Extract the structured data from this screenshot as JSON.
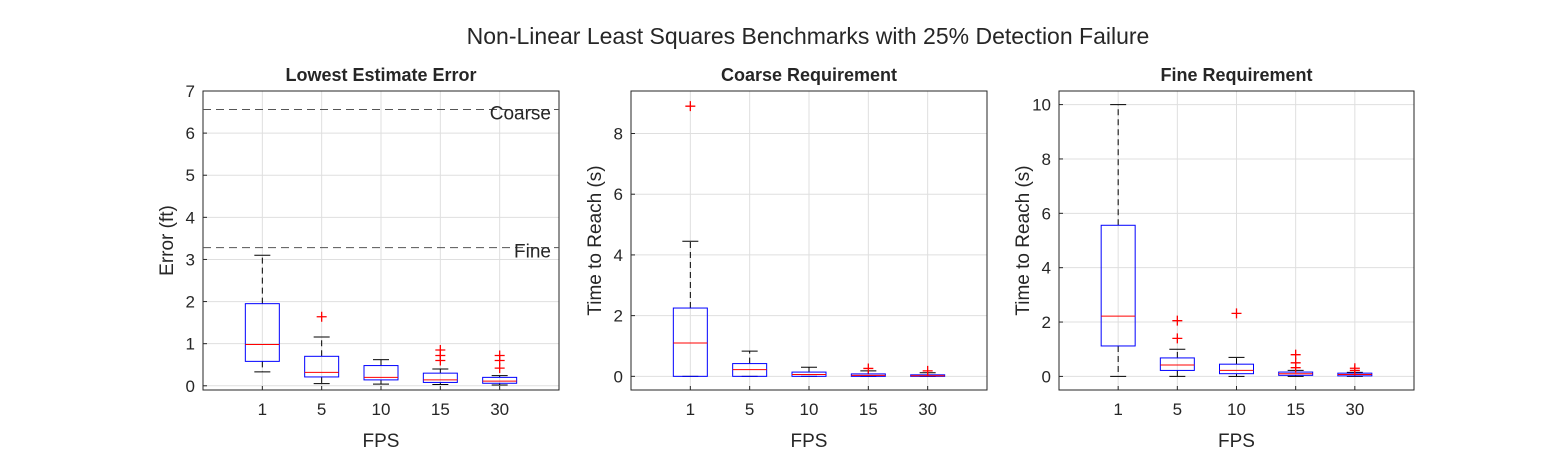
{
  "figure": {
    "suptitle": "Non-Linear Least Squares Benchmarks with 25% Detection Failure"
  },
  "colors": {
    "box": "#0000ff",
    "median": "#ff0000",
    "outlier": "#ff0000",
    "whisker": "#000000",
    "refline": "#555555",
    "grid": "#dfdfdf",
    "axis": "#262626"
  },
  "chart_data": [
    {
      "type": "box",
      "title": "Lowest Estimate Error",
      "xlabel": "FPS",
      "ylabel": "Error (ft)",
      "categories": [
        "1",
        "5",
        "10",
        "15",
        "30"
      ],
      "ylim": [
        -0.1,
        7
      ],
      "yticks": [
        0,
        1,
        2,
        3,
        4,
        5,
        6,
        7
      ],
      "grid": true,
      "boxes": [
        {
          "q1": 0.58,
          "median": 0.98,
          "q3": 1.95,
          "whisker_low": 0.33,
          "whisker_high": 3.1,
          "outliers": []
        },
        {
          "q1": 0.21,
          "median": 0.32,
          "q3": 0.7,
          "whisker_low": 0.05,
          "whisker_high": 1.16,
          "outliers": [
            1.64
          ]
        },
        {
          "q1": 0.14,
          "median": 0.2,
          "q3": 0.48,
          "whisker_low": 0.04,
          "whisker_high": 0.62,
          "outliers": []
        },
        {
          "q1": 0.08,
          "median": 0.14,
          "q3": 0.3,
          "whisker_low": 0.03,
          "whisker_high": 0.4,
          "outliers": [
            0.6,
            0.72,
            0.85
          ]
        },
        {
          "q1": 0.06,
          "median": 0.11,
          "q3": 0.2,
          "whisker_low": 0.02,
          "whisker_high": 0.24,
          "outliers": [
            0.42,
            0.6,
            0.72
          ]
        }
      ],
      "reference_lines": [
        {
          "label": "Coarse",
          "y": 6.56
        },
        {
          "label": "Fine",
          "y": 3.28
        }
      ]
    },
    {
      "type": "box",
      "title": "Coarse Requirement",
      "xlabel": "FPS",
      "ylabel": "Time to Reach (s)",
      "categories": [
        "1",
        "5",
        "10",
        "15",
        "30"
      ],
      "ylim": [
        -0.45,
        9.4
      ],
      "yticks": [
        0,
        2,
        4,
        6,
        8
      ],
      "grid": true,
      "boxes": [
        {
          "q1": 0.0,
          "median": 1.1,
          "q3": 2.25,
          "whisker_low": 0.0,
          "whisker_high": 4.45,
          "outliers": [
            8.9
          ]
        },
        {
          "q1": 0.0,
          "median": 0.22,
          "q3": 0.42,
          "whisker_low": 0.0,
          "whisker_high": 0.83,
          "outliers": []
        },
        {
          "q1": 0.0,
          "median": 0.06,
          "q3": 0.14,
          "whisker_low": 0.0,
          "whisker_high": 0.3,
          "outliers": []
        },
        {
          "q1": 0.0,
          "median": 0.03,
          "q3": 0.08,
          "whisker_low": 0.0,
          "whisker_high": 0.18,
          "outliers": [
            0.26
          ]
        },
        {
          "q1": 0.0,
          "median": 0.02,
          "q3": 0.05,
          "whisker_low": 0.0,
          "whisker_high": 0.12,
          "outliers": [
            0.18
          ]
        }
      ]
    },
    {
      "type": "box",
      "title": "Fine Requirement",
      "xlabel": "FPS",
      "ylabel": "Time to Reach (s)",
      "categories": [
        "1",
        "5",
        "10",
        "15",
        "30"
      ],
      "ylim": [
        -0.5,
        10.5
      ],
      "yticks": [
        0,
        2,
        4,
        6,
        8,
        10
      ],
      "grid": true,
      "boxes": [
        {
          "q1": 1.12,
          "median": 2.22,
          "q3": 5.56,
          "whisker_low": 0.0,
          "whisker_high": 10.0,
          "outliers": []
        },
        {
          "q1": 0.22,
          "median": 0.42,
          "q3": 0.68,
          "whisker_low": 0.0,
          "whisker_high": 1.0,
          "outliers": [
            1.4,
            2.05
          ]
        },
        {
          "q1": 0.1,
          "median": 0.22,
          "q3": 0.45,
          "whisker_low": 0.0,
          "whisker_high": 0.7,
          "outliers": [
            2.32
          ]
        },
        {
          "q1": 0.04,
          "median": 0.1,
          "q3": 0.16,
          "whisker_low": 0.0,
          "whisker_high": 0.22,
          "outliers": [
            0.32,
            0.5,
            0.8
          ]
        },
        {
          "q1": 0.02,
          "median": 0.07,
          "q3": 0.12,
          "whisker_low": 0.0,
          "whisker_high": 0.15,
          "outliers": [
            0.22,
            0.3
          ]
        }
      ]
    }
  ]
}
